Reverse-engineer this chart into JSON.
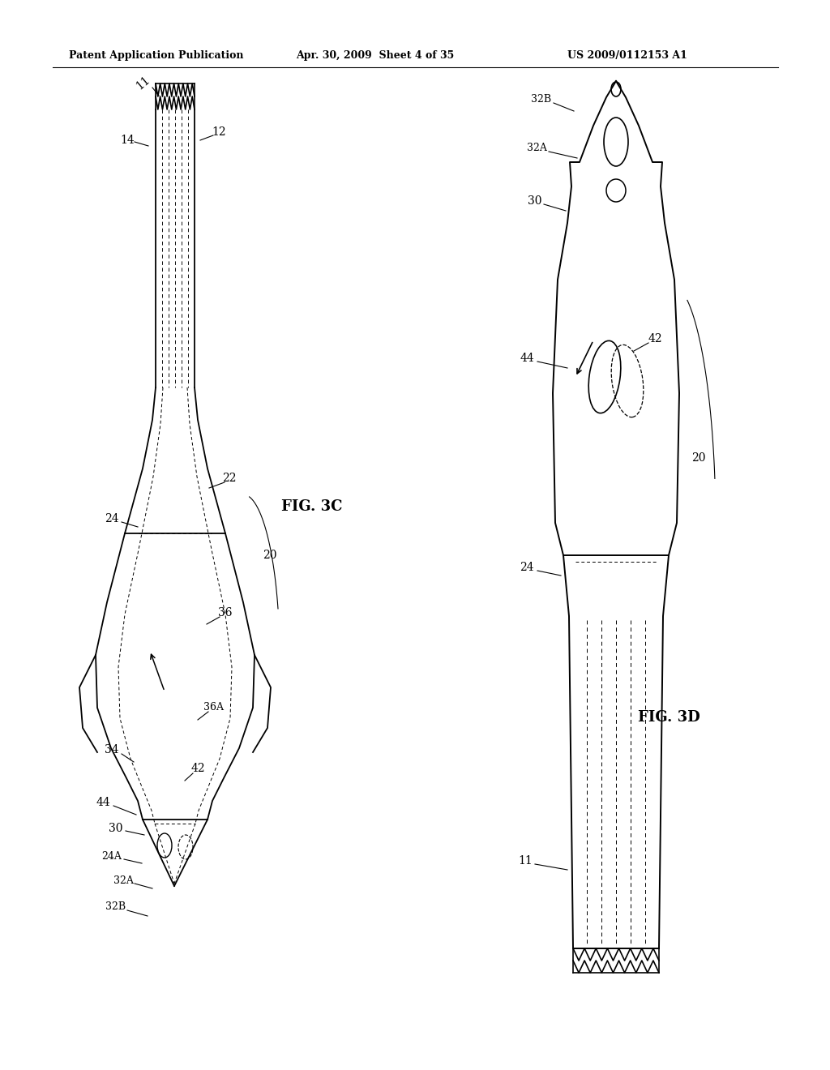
{
  "bg_color": "#ffffff",
  "line_color": "#000000",
  "header_left": "Patent Application Publication",
  "header_center": "Apr. 30, 2009  Sheet 4 of 35",
  "header_right": "US 2009/0112153 A1",
  "fig3c_label": "FIG. 3C",
  "fig3d_label": "FIG. 3D",
  "label_fontsize": 10,
  "small_label_fontsize": 9,
  "header_fontsize": 9,
  "fig_label_fontsize": 13
}
